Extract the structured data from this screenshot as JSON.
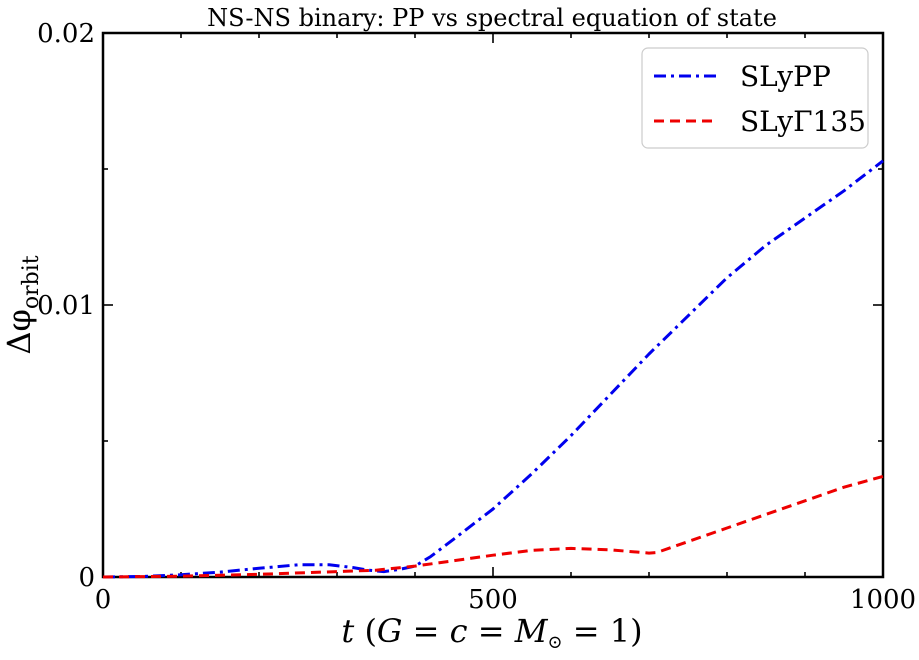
{
  "chart_data": {
    "type": "line",
    "title": "NS-NS binary: PP vs spectral equation of state",
    "xlabel": "t (G = c = M⊙ = 1)",
    "ylabel": "Δφorbit",
    "ylabel_main": "Δφ",
    "ylabel_sub": "orbit",
    "xlim": [
      0,
      1000
    ],
    "ylim": [
      0,
      0.02
    ],
    "x_ticks": [
      0,
      500,
      1000
    ],
    "x_tick_labels": [
      "0",
      "500",
      "1000"
    ],
    "x_minor_ticks": [
      100,
      200,
      300,
      400,
      600,
      700,
      800,
      900
    ],
    "y_ticks": [
      0,
      0.01,
      0.02
    ],
    "y_tick_labels": [
      "0",
      "0.01",
      "0.02"
    ],
    "y_minor_ticks": [
      0.005,
      0.015
    ],
    "grid": false,
    "legend_position": "top-right",
    "series": [
      {
        "name": "SLyPP",
        "color": "#0000ee",
        "dash": "dash-dot",
        "points": [
          [
            0,
            0.0
          ],
          [
            50,
            2e-05
          ],
          [
            100,
            8e-05
          ],
          [
            150,
            0.00018
          ],
          [
            200,
            0.00032
          ],
          [
            250,
            0.00045
          ],
          [
            290,
            0.00045
          ],
          [
            320,
            0.00035
          ],
          [
            340,
            0.00025
          ],
          [
            360,
            0.0002
          ],
          [
            380,
            0.00028
          ],
          [
            400,
            0.0004
          ],
          [
            420,
            0.00075
          ],
          [
            450,
            0.0014
          ],
          [
            500,
            0.0025
          ],
          [
            550,
            0.0038
          ],
          [
            600,
            0.0052
          ],
          [
            650,
            0.0067
          ],
          [
            700,
            0.0082
          ],
          [
            750,
            0.0096
          ],
          [
            800,
            0.011
          ],
          [
            850,
            0.0122
          ],
          [
            900,
            0.0132
          ],
          [
            950,
            0.0142
          ],
          [
            1000,
            0.0153
          ]
        ]
      },
      {
        "name": "SLyΓ135",
        "color": "#ee0000",
        "dash": "dashed",
        "points": [
          [
            0,
            0.0
          ],
          [
            100,
            3e-05
          ],
          [
            200,
            0.0001
          ],
          [
            300,
            0.0002
          ],
          [
            350,
            0.00025
          ],
          [
            400,
            0.0004
          ],
          [
            450,
            0.0006
          ],
          [
            500,
            0.0008
          ],
          [
            550,
            0.00098
          ],
          [
            600,
            0.00105
          ],
          [
            650,
            0.001
          ],
          [
            700,
            0.00088
          ],
          [
            710,
            0.0009
          ],
          [
            750,
            0.0013
          ],
          [
            800,
            0.0018
          ],
          [
            850,
            0.0023
          ],
          [
            900,
            0.0028
          ],
          [
            950,
            0.0033
          ],
          [
            1000,
            0.0037
          ]
        ]
      }
    ]
  }
}
